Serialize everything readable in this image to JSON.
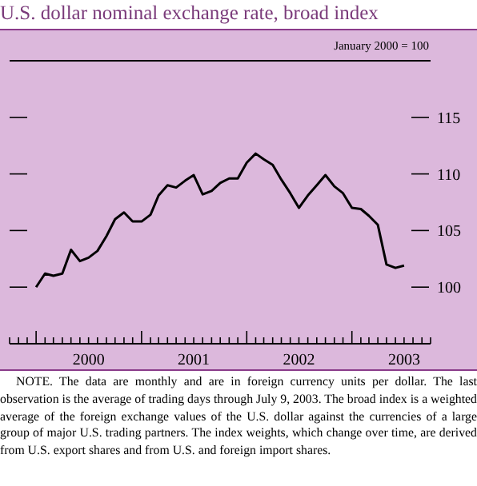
{
  "chart_data": {
    "type": "line",
    "title": "U.S. dollar nominal exchange rate, broad index",
    "subtitle": "January 2000 = 100",
    "x": [
      "2000-01",
      "2000-02",
      "2000-03",
      "2000-04",
      "2000-05",
      "2000-06",
      "2000-07",
      "2000-08",
      "2000-09",
      "2000-10",
      "2000-11",
      "2000-12",
      "2001-01",
      "2001-02",
      "2001-03",
      "2001-04",
      "2001-05",
      "2001-06",
      "2001-07",
      "2001-08",
      "2001-09",
      "2001-10",
      "2001-11",
      "2001-12",
      "2002-01",
      "2002-02",
      "2002-03",
      "2002-04",
      "2002-05",
      "2002-06",
      "2002-07",
      "2002-08",
      "2002-09",
      "2002-10",
      "2002-11",
      "2002-12",
      "2003-01",
      "2003-02",
      "2003-03",
      "2003-04",
      "2003-05",
      "2003-06",
      "2003-07"
    ],
    "series": [
      {
        "color": "#000000",
        "values": [
          100.0,
          101.2,
          101.0,
          101.2,
          103.3,
          102.3,
          102.6,
          103.2,
          104.5,
          106.0,
          106.6,
          105.8,
          105.8,
          106.4,
          108.1,
          109.0,
          108.8,
          109.4,
          109.9,
          108.2,
          108.5,
          109.2,
          109.6,
          109.6,
          111.0,
          111.8,
          111.3,
          110.8,
          109.5,
          108.3,
          107.0,
          108.1,
          109.0,
          109.9,
          108.9,
          108.3,
          107.0,
          106.9,
          106.3,
          105.5,
          102.0,
          101.7,
          101.9
        ]
      }
    ],
    "xlim": [
      "1999-10",
      "2003-10"
    ],
    "xticks": [
      {
        "value": "1999-10",
        "label": null
      },
      {
        "value": "1999-11",
        "label": null
      },
      {
        "value": "1999-12",
        "label": null
      },
      {
        "value": "2000-01",
        "label": null
      },
      {
        "value": "2000-02",
        "label": null
      },
      {
        "value": "2000-03",
        "label": null
      },
      {
        "value": "2000-04",
        "label": null
      },
      {
        "value": "2000-05",
        "label": null
      },
      {
        "value": "2000-06",
        "label": null
      },
      {
        "value": "2000-07",
        "label": "2000"
      },
      {
        "value": "2000-08",
        "label": null
      },
      {
        "value": "2000-09",
        "label": null
      },
      {
        "value": "2000-10",
        "label": null
      },
      {
        "value": "2000-11",
        "label": null
      },
      {
        "value": "2000-12",
        "label": null
      },
      {
        "value": "2001-01",
        "label": null
      },
      {
        "value": "2001-02",
        "label": null
      },
      {
        "value": "2001-03",
        "label": null
      },
      {
        "value": "2001-04",
        "label": null
      },
      {
        "value": "2001-05",
        "label": null
      },
      {
        "value": "2001-06",
        "label": null
      },
      {
        "value": "2001-07",
        "label": "2001"
      },
      {
        "value": "2001-08",
        "label": null
      },
      {
        "value": "2001-09",
        "label": null
      },
      {
        "value": "2001-10",
        "label": null
      },
      {
        "value": "2001-11",
        "label": null
      },
      {
        "value": "2001-12",
        "label": null
      },
      {
        "value": "2002-01",
        "label": null
      },
      {
        "value": "2002-02",
        "label": null
      },
      {
        "value": "2002-03",
        "label": null
      },
      {
        "value": "2002-04",
        "label": null
      },
      {
        "value": "2002-05",
        "label": null
      },
      {
        "value": "2002-06",
        "label": null
      },
      {
        "value": "2002-07",
        "label": "2002"
      },
      {
        "value": "2002-08",
        "label": null
      },
      {
        "value": "2002-09",
        "label": null
      },
      {
        "value": "2002-10",
        "label": null
      },
      {
        "value": "2002-11",
        "label": null
      },
      {
        "value": "2002-12",
        "label": null
      },
      {
        "value": "2003-01",
        "label": null
      },
      {
        "value": "2003-02",
        "label": null
      },
      {
        "value": "2003-03",
        "label": null
      },
      {
        "value": "2003-04",
        "label": null
      },
      {
        "value": "2003-05",
        "label": null
      },
      {
        "value": "2003-06",
        "label": null
      },
      {
        "value": "2003-07",
        "label": "2003"
      },
      {
        "value": "2003-08",
        "label": null
      },
      {
        "value": "2003-09",
        "label": null
      },
      {
        "value": "2003-10",
        "label": null
      }
    ],
    "ylim": [
      95,
      120
    ],
    "yticks": [
      100,
      105,
      110,
      115
    ],
    "annotations": [
      "NOTE. The data are monthly and are in foreign currency units per dollar. The last observation is the average of trading days through July 9, 2003. The broad index is a weighted average of the foreign exchange values of the U.S. dollar against the currencies of a large group of major U.S. trading partners. The index weights, which change over time, are derived from U.S. export shares and from U.S. and foreign import shares."
    ]
  }
}
